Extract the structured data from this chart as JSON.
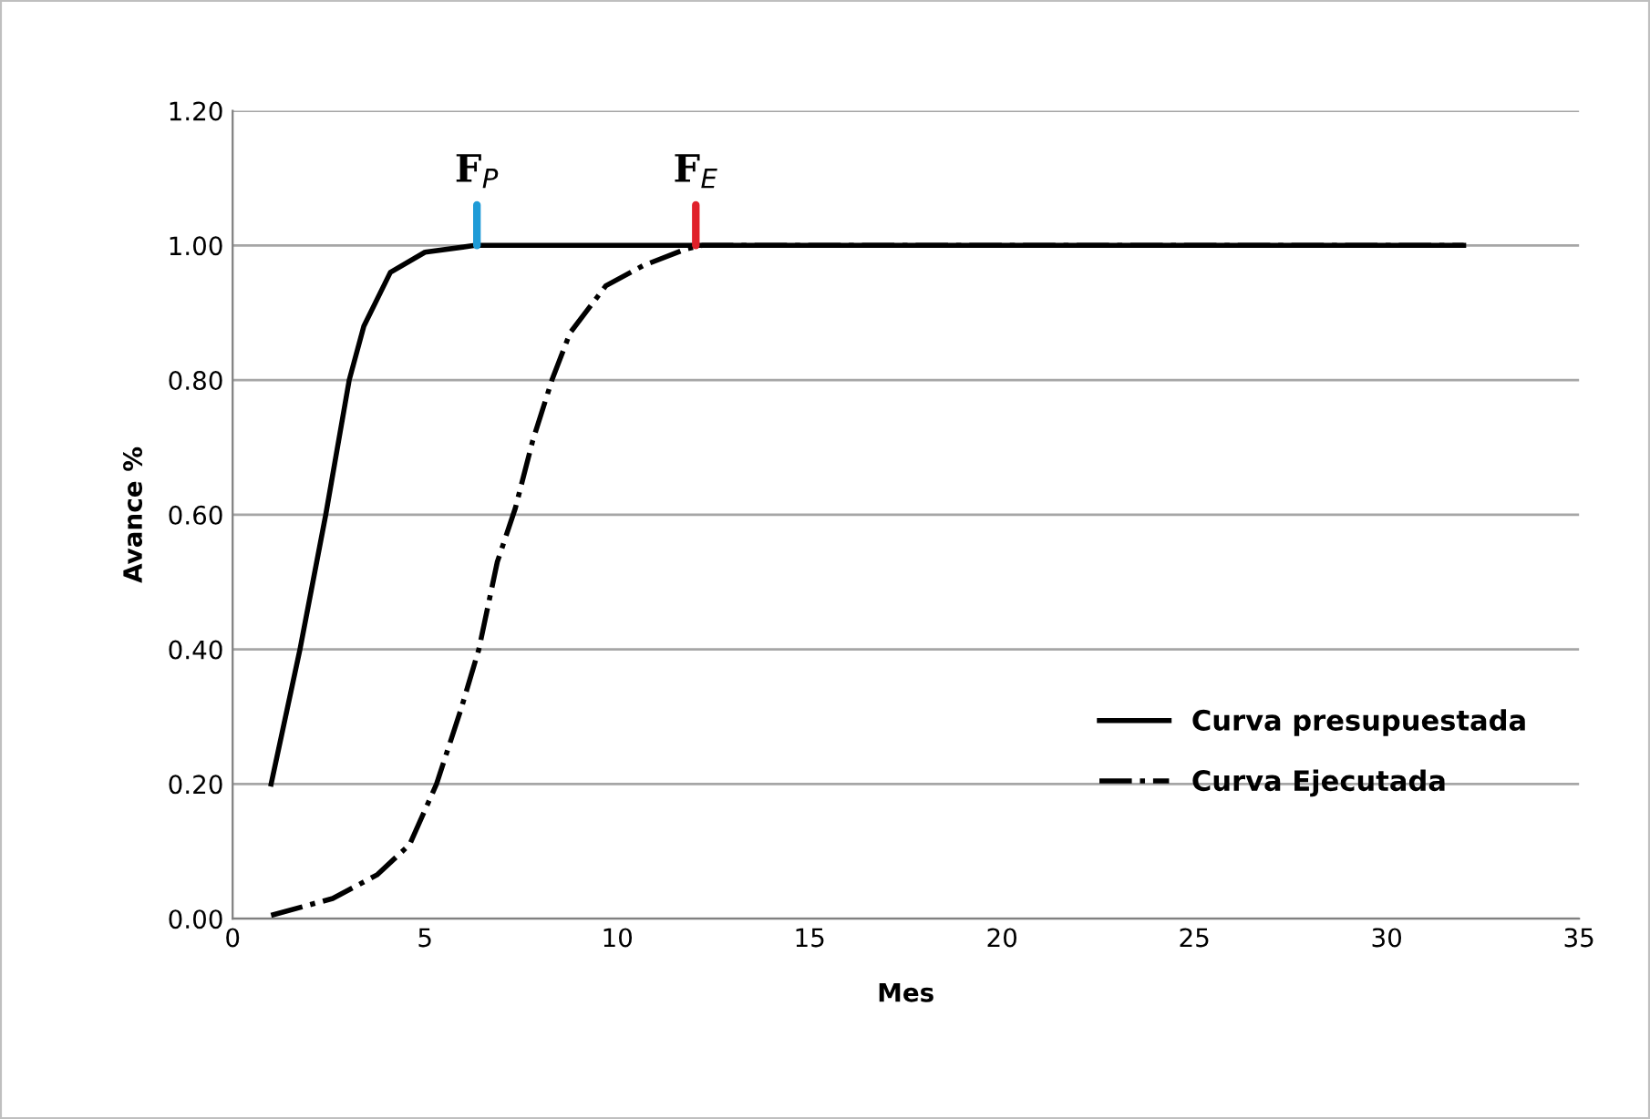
{
  "chart_data": {
    "type": "line",
    "xlabel": "Mes",
    "ylabel": "Avance %",
    "series": [
      {
        "name": "Curva presupuestada",
        "color": "#000000",
        "line_style": "solid",
        "x": [
          1,
          1.75,
          2.42,
          3.03,
          3.41,
          4.1,
          5.0,
          6.3,
          32
        ],
        "values": [
          0.2,
          0.4,
          0.6,
          0.8,
          0.88,
          0.96,
          0.99,
          1.0,
          1.0
        ]
      },
      {
        "name": "Curva Ejecutada",
        "color": "#000000",
        "line_style": "dashdot",
        "x": [
          1,
          2.6,
          3.75,
          4.6,
          5.3,
          5.93,
          6.4,
          6.88,
          7.35,
          7.8,
          8.3,
          8.77,
          9.7,
          10.67,
          11.8,
          12.2,
          32
        ],
        "values": [
          0.005,
          0.03,
          0.065,
          0.11,
          0.2,
          0.31,
          0.4,
          0.53,
          0.61,
          0.71,
          0.8,
          0.87,
          0.94,
          0.97,
          0.995,
          1.0,
          1.0
        ]
      }
    ],
    "annotations": [
      {
        "text": "F$_{P}$",
        "x": 6.35,
        "y": 1.0
      },
      {
        "text": "F$_{E}$",
        "x": 12.04,
        "y": 1.0
      }
    ],
    "xlim": [
      0,
      35
    ],
    "xticks": [
      0,
      5,
      10,
      15,
      20,
      25,
      30,
      35
    ],
    "ylim": [
      0,
      1.2
    ],
    "yticks": [
      {
        "value": 0,
        "label": "0.00"
      },
      {
        "value": 0.2,
        "label": "0.20"
      },
      {
        "value": 0.4,
        "label": "0.40"
      },
      {
        "value": 0.6,
        "label": "0.60"
      },
      {
        "value": 0.8,
        "label": "0.80"
      },
      {
        "value": 1.0,
        "label": "1.00"
      },
      {
        "value": 1.2,
        "label": "1.20"
      }
    ],
    "grid": "y",
    "legend": "bottom right",
    "marker": "none"
  }
}
